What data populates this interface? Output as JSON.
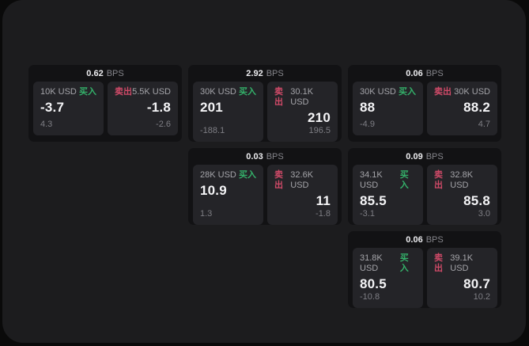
{
  "labels": {
    "buy": "买入",
    "sell": "卖出",
    "bps_unit": "BPS"
  },
  "colors": {
    "buy": "#34b16a",
    "sell": "#cf4a68",
    "container_bg": "#1c1c1e",
    "card_bg": "#121214",
    "panel_bg": "#242428"
  },
  "cards": [
    {
      "bps": "0.62",
      "buy": {
        "size": "10K USD",
        "price": "-3.7",
        "delta": "4.3"
      },
      "sell": {
        "size": "5.5K USD",
        "price": "-1.8",
        "delta": "-2.6"
      }
    },
    {
      "bps": "2.92",
      "buy": {
        "size": "30K USD",
        "price": "201",
        "delta": "-188.1"
      },
      "sell": {
        "size": "30.1K USD",
        "price": "210",
        "delta": "196.5"
      }
    },
    {
      "bps": "0.06",
      "buy": {
        "size": "30K USD",
        "price": "88",
        "delta": "-4.9"
      },
      "sell": {
        "size": "30K USD",
        "price": "88.2",
        "delta": "4.7"
      }
    },
    {
      "bps": "0.03",
      "buy": {
        "size": "28K USD",
        "price": "10.9",
        "delta": "1.3"
      },
      "sell": {
        "size": "32.6K USD",
        "price": "11",
        "delta": "-1.8"
      }
    },
    {
      "bps": "0.09",
      "buy": {
        "size": "34.1K USD",
        "price": "85.5",
        "delta": "-3.1"
      },
      "sell": {
        "size": "32.8K USD",
        "price": "85.8",
        "delta": "3.0"
      }
    },
    {
      "bps": "0.06",
      "buy": {
        "size": "31.8K USD",
        "price": "80.5",
        "delta": "-10.8"
      },
      "sell": {
        "size": "39.1K USD",
        "price": "80.7",
        "delta": "10.2"
      }
    }
  ]
}
